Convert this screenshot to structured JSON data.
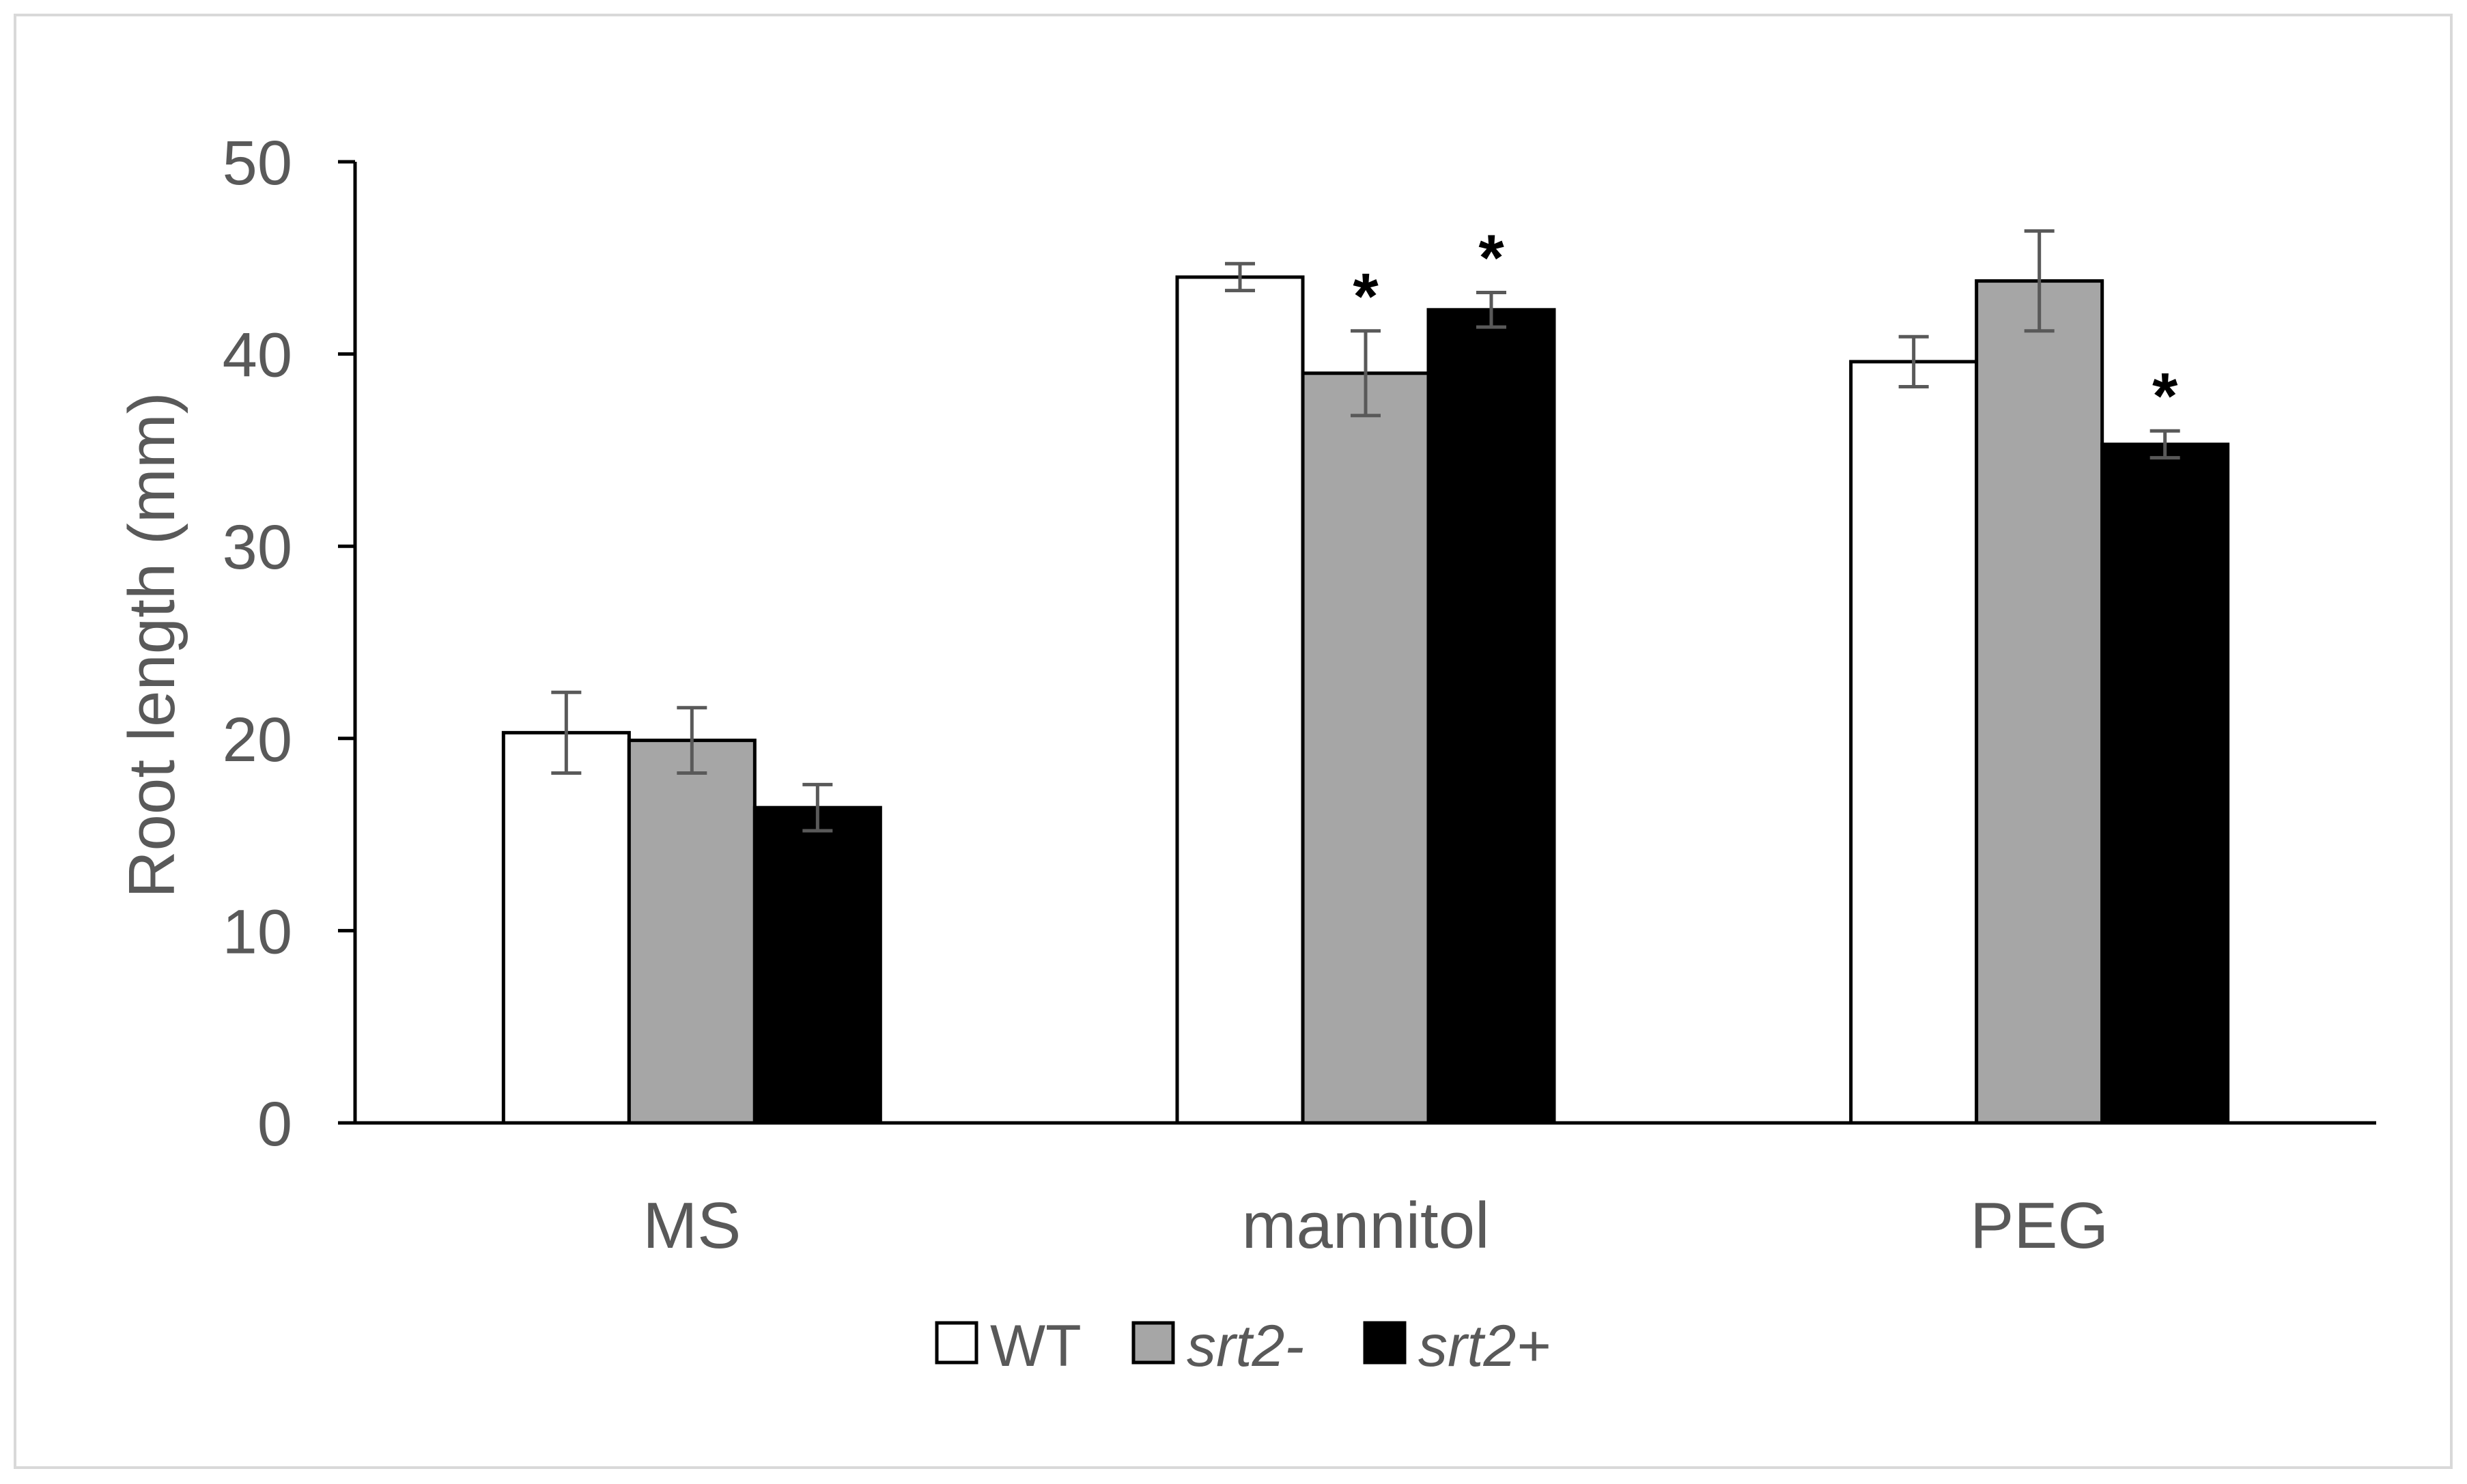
{
  "chart_data": {
    "type": "bar",
    "title": "",
    "xlabel": "",
    "ylabel": "Root length (mm)",
    "ylim": [
      0,
      50
    ],
    "yticks": [
      0,
      10,
      20,
      30,
      40,
      50
    ],
    "grid": false,
    "legend_position": "bottom-center",
    "categories": [
      "MS",
      "mannitol",
      "PEG"
    ],
    "series": [
      {
        "name": "WT",
        "color": "#ffffff",
        "values": [
          20.3,
          44.0,
          39.6
        ],
        "errors": [
          2.1,
          0.7,
          1.3
        ],
        "significance": [
          "",
          "",
          ""
        ]
      },
      {
        "name": "srt2-",
        "color": "#a6a6a6",
        "values": [
          19.9,
          39.0,
          43.8
        ],
        "errors": [
          1.7,
          2.2,
          2.6
        ],
        "significance": [
          "",
          "*",
          ""
        ]
      },
      {
        "name": "srt2+",
        "color": "#000000",
        "values": [
          16.4,
          42.3,
          35.3
        ],
        "errors": [
          1.2,
          0.9,
          0.7
        ],
        "significance": [
          "",
          "*",
          "*"
        ]
      }
    ],
    "colors": {
      "axis": "#000000",
      "tick_text": "#595959",
      "error_bar": "#595959",
      "frame": "#d9d9d9"
    }
  }
}
